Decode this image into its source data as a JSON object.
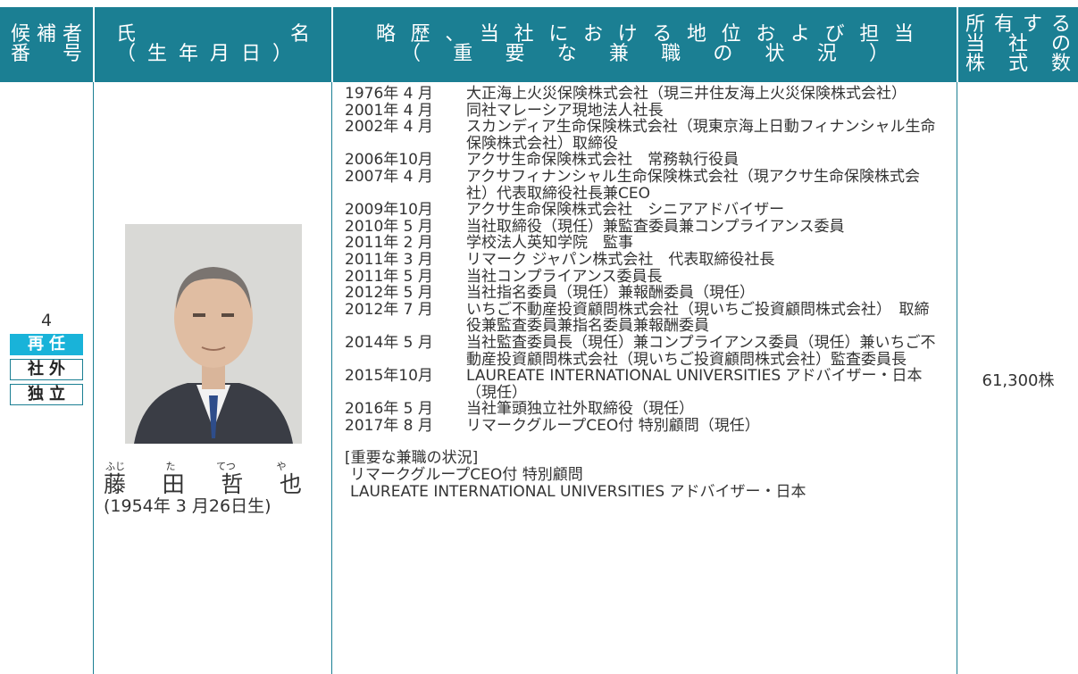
{
  "header": {
    "candidate_no": [
      "候補者",
      "番号"
    ],
    "name": [
      "氏名",
      "（生年月日）"
    ],
    "career": [
      "略歴、当社における地位および担当",
      "（重要な兼職の状況）"
    ],
    "shares": [
      "所有する",
      "当社の",
      "株式数"
    ]
  },
  "candidate": {
    "number": "4",
    "badges": [
      "再任",
      "社外",
      "独立"
    ],
    "name_ruby": [
      "ふじ",
      "た",
      "てつ",
      "や"
    ],
    "name_chars": [
      "藤",
      "田",
      "哲",
      "也"
    ],
    "birth": "(1954年 3 月26日生)",
    "career": [
      {
        "date": "1976年 4 月",
        "text": "大正海上火災保険株式会社（現三井住友海上火災保険株式会社）"
      },
      {
        "date": "2001年 4 月",
        "text": "同社マレーシア現地法人社長"
      },
      {
        "date": "2002年 4 月",
        "text": "スカンディア生命保険株式会社（現東京海上日動フィナンシャル生命保険株式会社）取締役"
      },
      {
        "date": "2006年10月",
        "text": "アクサ生命保険株式会社　常務執行役員"
      },
      {
        "date": "2007年 4 月",
        "text": "アクサフィナンシャル生命保険株式会社（現アクサ生命保険株式会社）代表取締役社長兼CEO"
      },
      {
        "date": "2009年10月",
        "text": "アクサ生命保険株式会社　シニアアドバイザー"
      },
      {
        "date": "2010年 5 月",
        "text": "当社取締役（現任）兼監査委員兼コンプライアンス委員"
      },
      {
        "date": "2011年 2 月",
        "text": "学校法人英知学院　監事"
      },
      {
        "date": "2011年 3 月",
        "text": "リマーク ジャパン株式会社　代表取締役社長"
      },
      {
        "date": "2011年 5 月",
        "text": "当社コンプライアンス委員長"
      },
      {
        "date": "2012年 5 月",
        "text": "当社指名委員（現任）兼報酬委員（現任）"
      },
      {
        "date": "2012年 7 月",
        "text": "いちご不動産投資顧問株式会社（現いちご投資顧問株式会社）　取締役兼監査委員兼指名委員兼報酬委員"
      },
      {
        "date": "2014年 5 月",
        "text": "当社監査委員長（現任）兼コンプライアンス委員（現任）兼いちご不動産投資顧問株式会社（現いちご投資顧問株式会社）監査委員長"
      },
      {
        "date": "2015年10月",
        "text": "LAUREATE INTERNATIONAL UNIVERSITIES アドバイザー・日本（現任）"
      },
      {
        "date": "2016年 5 月",
        "text": "当社筆頭独立社外取締役（現任）"
      },
      {
        "date": "2017年 8 月",
        "text": "リマークグループCEO付 特別顧問（現任）"
      }
    ],
    "concurrent_heading": "[重要な兼職の状況]",
    "concurrent": [
      "リマークグループCEO付 特別顧問",
      "LAUREATE INTERNATIONAL UNIVERSITIES アドバイザー・日本"
    ],
    "shares": "61,300株"
  }
}
